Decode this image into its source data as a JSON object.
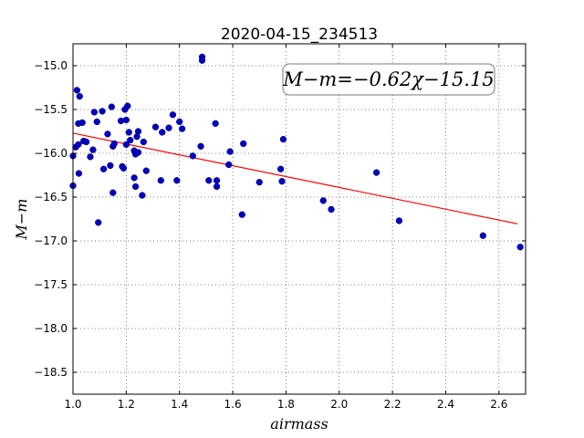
{
  "chart_data": {
    "type": "scatter",
    "title": "2020-04-15_234513",
    "xlabel": "airmass",
    "ylabel": "M−m",
    "xlim": [
      1.0,
      2.7
    ],
    "ylim": [
      -18.75,
      -14.75
    ],
    "y_inverted": true,
    "xticks": [
      1.0,
      1.2,
      1.4,
      1.6,
      1.8,
      2.0,
      2.2,
      2.4,
      2.6
    ],
    "yticks": [
      -15.0,
      -15.5,
      -16.0,
      -16.5,
      -17.0,
      -17.5,
      -18.0,
      -18.5
    ],
    "xtick_labels": [
      "1.0",
      "1.2",
      "1.4",
      "1.6",
      "1.8",
      "2.0",
      "2.2",
      "2.4",
      "2.6"
    ],
    "ytick_labels": [
      "−15.0",
      "−15.5",
      "−16.0",
      "−16.5",
      "−17.0",
      "−17.5",
      "−18.0",
      "−18.5"
    ],
    "grid": true,
    "annotation": "M−m=−0.62χ−15.15",
    "annotation_location": "top-right",
    "fit_line": {
      "slope": -0.62,
      "intercept": -15.15,
      "x_range": [
        1.0,
        2.67
      ],
      "color": "#ff0000"
    },
    "point_color": "#0000cc",
    "points": [
      [
        1.0,
        -16.03
      ],
      [
        1.0,
        -16.37
      ],
      [
        1.01,
        -15.93
      ],
      [
        1.015,
        -15.28
      ],
      [
        1.02,
        -15.66
      ],
      [
        1.02,
        -15.9
      ],
      [
        1.022,
        -16.23
      ],
      [
        1.025,
        -15.35
      ],
      [
        1.035,
        -15.65
      ],
      [
        1.04,
        -15.86
      ],
      [
        1.05,
        -15.87
      ],
      [
        1.065,
        -16.04
      ],
      [
        1.075,
        -15.96
      ],
      [
        1.08,
        -15.53
      ],
      [
        1.09,
        -15.64
      ],
      [
        1.095,
        -16.79
      ],
      [
        1.11,
        -15.52
      ],
      [
        1.115,
        -16.18
      ],
      [
        1.13,
        -15.78
      ],
      [
        1.14,
        -16.14
      ],
      [
        1.145,
        -15.47
      ],
      [
        1.15,
        -15.92
      ],
      [
        1.15,
        -16.45
      ],
      [
        1.155,
        -15.89
      ],
      [
        1.18,
        -15.63
      ],
      [
        1.185,
        -16.15
      ],
      [
        1.19,
        -16.17
      ],
      [
        1.195,
        -15.5
      ],
      [
        1.2,
        -15.9
      ],
      [
        1.2,
        -15.62
      ],
      [
        1.205,
        -15.46
      ],
      [
        1.21,
        -15.76
      ],
      [
        1.215,
        -15.85
      ],
      [
        1.23,
        -15.97
      ],
      [
        1.23,
        -16.28
      ],
      [
        1.235,
        -16.38
      ],
      [
        1.235,
        -16.01
      ],
      [
        1.24,
        -15.81
      ],
      [
        1.245,
        -15.99
      ],
      [
        1.245,
        -15.75
      ],
      [
        1.26,
        -16.48
      ],
      [
        1.265,
        -15.87
      ],
      [
        1.275,
        -16.2
      ],
      [
        1.31,
        -15.7
      ],
      [
        1.33,
        -16.31
      ],
      [
        1.335,
        -15.76
      ],
      [
        1.36,
        -15.71
      ],
      [
        1.375,
        -15.56
      ],
      [
        1.39,
        -16.31
      ],
      [
        1.4,
        -15.64
      ],
      [
        1.41,
        -15.72
      ],
      [
        1.45,
        -16.03
      ],
      [
        1.48,
        -15.92
      ],
      [
        1.485,
        -14.9
      ],
      [
        1.485,
        -14.94
      ],
      [
        1.51,
        -16.31
      ],
      [
        1.535,
        -15.66
      ],
      [
        1.54,
        -16.31
      ],
      [
        1.54,
        -16.38
      ],
      [
        1.585,
        -16.13
      ],
      [
        1.59,
        -15.98
      ],
      [
        1.635,
        -16.7
      ],
      [
        1.64,
        -15.89
      ],
      [
        1.7,
        -16.33
      ],
      [
        1.78,
        -16.18
      ],
      [
        1.785,
        -16.32
      ],
      [
        1.79,
        -15.84
      ],
      [
        1.94,
        -16.54
      ],
      [
        1.97,
        -16.64
      ],
      [
        2.14,
        -16.22
      ],
      [
        2.225,
        -16.77
      ],
      [
        2.54,
        -16.94
      ],
      [
        2.68,
        -17.07
      ]
    ]
  }
}
